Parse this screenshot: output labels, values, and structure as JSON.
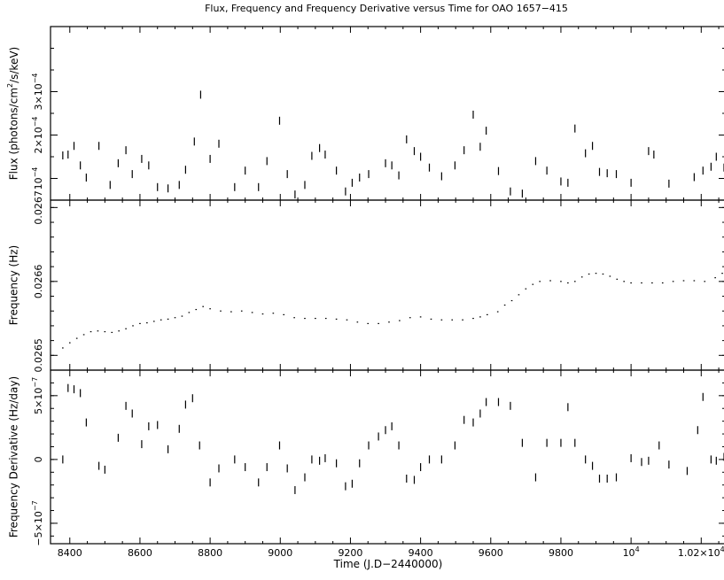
{
  "chart_data": {
    "type": "scatter",
    "title": "Flux, Frequency and Frequency Derivative versus Time for OAO 1657−415",
    "xlabel": "Time (J.D−2440000)",
    "x_ticks": [
      "8400",
      "8600",
      "8800",
      "9000",
      "9200",
      "9400",
      "9600",
      "9800",
      "10",
      "1.02×10"
    ],
    "x_tick_values": [
      8400,
      8600,
      8800,
      9000,
      9200,
      9400,
      9600,
      9800,
      10000,
      10200
    ],
    "xlim": [
      8345,
      10270
    ],
    "panels": [
      {
        "ylabel_main": "Flux (photons/cm",
        "ylabel_sup": "2",
        "ylabel_tail": "/s/keV)",
        "ylim": [
          5e-05,
          0.00045
        ],
        "y_ticks": [
          {
            "value": 0.0001,
            "mant": "10",
            "exp": "−4"
          },
          {
            "value": 0.0002,
            "mant": "2×10",
            "exp": "−4"
          },
          {
            "value": 0.0003,
            "mant": "3×10",
            "exp": "−4"
          }
        ],
        "x": [
          8380,
          8395,
          8412,
          8430,
          8447,
          8483,
          8515,
          8538,
          8560,
          8578,
          8605,
          8625,
          8650,
          8680,
          8712,
          8730,
          8755,
          8773,
          8800,
          8825,
          8870,
          8900,
          8938,
          8962,
          8998,
          9020,
          9042,
          9070,
          9090,
          9112,
          9128,
          9160,
          9186,
          9205,
          9226,
          9252,
          9300,
          9318,
          9338,
          9360,
          9382,
          9400,
          9425,
          9460,
          9498,
          9524,
          9550,
          9570,
          9587,
          9622,
          9656,
          9690,
          9728,
          9760,
          9800,
          9820,
          9840,
          9870,
          9890,
          9910,
          9932,
          9958,
          10000,
          10050,
          10065,
          10108,
          10180,
          10205,
          10228,
          10243,
          10265
        ],
        "y": [
          0.000153,
          0.000155,
          0.000175,
          0.00013,
          0.000102,
          0.000175,
          8.5e-05,
          0.000135,
          0.000165,
          0.00011,
          0.000145,
          0.00013,
          8e-05,
          7.7e-05,
          8.5e-05,
          0.00012,
          0.000185,
          0.000293,
          0.000145,
          0.00018,
          8e-05,
          0.000118,
          8e-05,
          0.00014,
          0.000233,
          0.00011,
          6.3e-05,
          8.5e-05,
          0.000152,
          0.00017,
          0.000155,
          0.000118,
          7e-05,
          9e-05,
          0.000102,
          0.00011,
          0.000135,
          0.00013,
          0.000107,
          0.00019,
          0.000163,
          0.00015,
          0.000125,
          0.000105,
          0.00013,
          0.000165,
          0.000247,
          0.000173,
          0.00021,
          0.000117,
          7e-05,
          6.5e-05,
          0.00014,
          0.000118,
          9.3e-05,
          9e-05,
          0.000215,
          0.000158,
          0.000175,
          0.000115,
          0.000112,
          0.00011,
          9e-05,
          0.000163,
          0.000155,
          8.8e-05,
          0.000103,
          0.000118,
          0.000127,
          0.00015,
          0.000125
        ]
      },
      {
        "ylabel": "Frequency (Hz)",
        "ylim": [
          0.02648,
          0.02671
        ],
        "y_ticks": [
          {
            "value": 0.0265,
            "label": "0.0265"
          },
          {
            "value": 0.0266,
            "label": "0.0266"
          },
          {
            "value": 0.0267,
            "label": "0.0267"
          }
        ],
        "x": [
          8380,
          8400,
          8420,
          8440,
          8460,
          8480,
          8500,
          8520,
          8540,
          8560,
          8580,
          8600,
          8620,
          8640,
          8660,
          8680,
          8700,
          8720,
          8740,
          8760,
          8780,
          8800,
          8830,
          8860,
          8890,
          8920,
          8950,
          8980,
          9010,
          9040,
          9070,
          9100,
          9130,
          9160,
          9190,
          9220,
          9250,
          9280,
          9310,
          9340,
          9370,
          9400,
          9430,
          9460,
          9490,
          9520,
          9550,
          9570,
          9590,
          9620,
          9640,
          9660,
          9680,
          9700,
          9720,
          9740,
          9770,
          9800,
          9820,
          9840,
          9860,
          9880,
          9900,
          9920,
          9940,
          9960,
          9980,
          10000,
          10030,
          10060,
          10090,
          10120,
          10150,
          10180,
          10210,
          10240,
          10260
        ],
        "y": [
          0.02651,
          0.026517,
          0.026523,
          0.026528,
          0.026532,
          0.026533,
          0.026532,
          0.026531,
          0.026533,
          0.026536,
          0.02654,
          0.026543,
          0.026544,
          0.026546,
          0.026548,
          0.026549,
          0.026551,
          0.026553,
          0.026558,
          0.026562,
          0.026566,
          0.026563,
          0.02656,
          0.026559,
          0.02656,
          0.026558,
          0.026556,
          0.026557,
          0.026555,
          0.026551,
          0.02655,
          0.02655,
          0.02655,
          0.026549,
          0.026548,
          0.026545,
          0.026543,
          0.026543,
          0.026545,
          0.026547,
          0.026551,
          0.026552,
          0.026549,
          0.026548,
          0.026548,
          0.026548,
          0.02655,
          0.026552,
          0.026555,
          0.026559,
          0.026568,
          0.026574,
          0.026582,
          0.02659,
          0.026596,
          0.0266,
          0.026601,
          0.0266,
          0.026598,
          0.0266,
          0.026606,
          0.02661,
          0.026611,
          0.02661,
          0.026607,
          0.026603,
          0.0266,
          0.026598,
          0.026598,
          0.026598,
          0.026598,
          0.0266,
          0.026601,
          0.026601,
          0.0266,
          0.026605,
          0.026611
        ]
      },
      {
        "ylabel": "Frequency Derivative (Hz/day)",
        "ylim": [
          -6.6e-07,
          7e-07
        ],
        "y_ticks": [
          {
            "value": 5e-07,
            "mant": "5×10",
            "exp": "−7"
          },
          {
            "value": 0,
            "mant": "0",
            "exp": ""
          },
          {
            "value": -5e-07,
            "mant": "−5×10",
            "exp": "−7"
          }
        ],
        "x": [
          8380,
          8395,
          8412,
          8430,
          8447,
          8483,
          8500,
          8538,
          8560,
          8578,
          8605,
          8625,
          8650,
          8680,
          8712,
          8730,
          8750,
          8770,
          8800,
          8825,
          8870,
          8900,
          8938,
          8962,
          8998,
          9020,
          9042,
          9070,
          9090,
          9112,
          9128,
          9160,
          9186,
          9205,
          9226,
          9252,
          9280,
          9300,
          9318,
          9338,
          9360,
          9382,
          9400,
          9425,
          9460,
          9498,
          9524,
          9550,
          9570,
          9587,
          9622,
          9656,
          9690,
          9728,
          9760,
          9800,
          9820,
          9840,
          9870,
          9890,
          9910,
          9932,
          9958,
          10000,
          10030,
          10050,
          10080,
          10108,
          10160,
          10190,
          10205,
          10228,
          10243,
          10265
        ],
        "y": [
          0,
          5.6e-07,
          5.5e-07,
          5.2e-07,
          2.9e-07,
          -5e-08,
          -8e-08,
          1.7e-07,
          4.2e-07,
          3.6e-07,
          1.2e-07,
          2.6e-07,
          2.7e-07,
          8e-08,
          2.4e-07,
          4.3e-07,
          4.8e-07,
          1.1e-07,
          -1.8e-07,
          -7e-08,
          0,
          -6e-08,
          -1.8e-07,
          -6e-08,
          1.1e-07,
          -7e-08,
          -2.4e-07,
          -1.4e-07,
          0,
          -1e-08,
          1e-08,
          -3e-08,
          -2.1e-07,
          -1.9e-07,
          -3e-08,
          1.1e-07,
          1.8e-07,
          2.3e-07,
          2.6e-07,
          1.1e-07,
          -1.5e-07,
          -1.6e-07,
          -6e-08,
          0,
          0,
          1.1e-07,
          3.1e-07,
          2.9e-07,
          3.6e-07,
          4.5e-07,
          4.5e-07,
          4.2e-07,
          1.3e-07,
          -1.4e-07,
          1.3e-07,
          1.3e-07,
          4.1e-07,
          1.3e-07,
          0,
          -5e-08,
          -1.5e-07,
          -1.5e-07,
          -1.4e-07,
          1e-08,
          -2e-08,
          -1e-08,
          1.1e-07,
          -4e-08,
          -9e-08,
          2.3e-07,
          4.9e-07,
          0,
          -1e-08,
          2e-08
        ]
      }
    ]
  }
}
